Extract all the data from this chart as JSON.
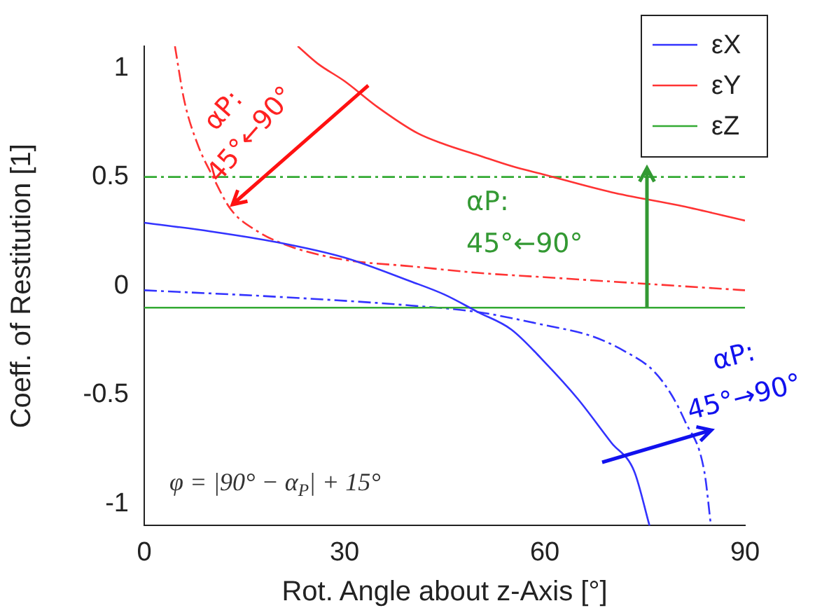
{
  "chart_data": {
    "type": "line",
    "xlabel": "Rot. Angle about z-Axis [°]",
    "ylabel": "Coeff. of Restitution [1]",
    "xlim": [
      0,
      90
    ],
    "xticks": [
      0,
      30,
      60,
      90
    ],
    "ylim": [
      -1.1,
      1.1
    ],
    "yticks": [
      -1,
      -0.5,
      0,
      0.5,
      1
    ],
    "grid": false,
    "legend": "top right",
    "marker": "none",
    "series": [
      {
        "name": "εX",
        "color": "#3333ff",
        "line_style": "solid",
        "x": [
          0,
          10,
          20,
          30,
          40,
          45,
          50,
          55,
          60,
          65,
          70,
          73.4,
          75.7
        ],
        "values": [
          0.29,
          0.25,
          0.2,
          0.13,
          0.02,
          -0.04,
          -0.12,
          -0.2,
          -0.35,
          -0.52,
          -0.72,
          -0.85,
          -1.1
        ]
      },
      {
        "name": "εY",
        "color": "#ff3333",
        "line_style": "solid",
        "x": [
          23,
          26,
          30,
          35,
          41,
          45,
          50,
          55,
          60,
          70,
          80,
          90
        ],
        "values": [
          1.1,
          1.02,
          0.94,
          0.82,
          0.7,
          0.65,
          0.6,
          0.55,
          0.51,
          0.43,
          0.37,
          0.3
        ]
      },
      {
        "name": "εZ",
        "color": "#33aa33",
        "line_style": "solid",
        "x": [
          0,
          90
        ],
        "values": [
          -0.1,
          -0.1
        ]
      },
      {
        "color": "#3333ff",
        "line_style": "dashed",
        "x": [
          0,
          20,
          40,
          50,
          60,
          67,
          72,
          76.3,
          79,
          81,
          83.9,
          84.9
        ],
        "values": [
          -0.02,
          -0.05,
          -0.09,
          -0.12,
          -0.18,
          -0.23,
          -0.3,
          -0.39,
          -0.5,
          -0.62,
          -0.85,
          -1.1
        ]
      },
      {
        "color": "#ff3333",
        "line_style": "dashed",
        "x": [
          4.6,
          6,
          8,
          10.3,
          13,
          17,
          22,
          30,
          40,
          50,
          60,
          70,
          80,
          90
        ],
        "values": [
          1.1,
          0.85,
          0.65,
          0.5,
          0.35,
          0.25,
          0.18,
          0.12,
          0.09,
          0.06,
          0.04,
          0.02,
          0,
          -0.02
        ]
      },
      {
        "color": "#33aa33",
        "line_style": "dashed",
        "x": [
          0,
          90
        ],
        "values": [
          0.5,
          0.5
        ]
      }
    ],
    "annotations": [
      "αP:\n45°←90°",
      "αP:\n45°←90°",
      "αP:\n45°→90°",
      "φ = |90° − α$_{P}$| + 15°"
    ]
  }
}
